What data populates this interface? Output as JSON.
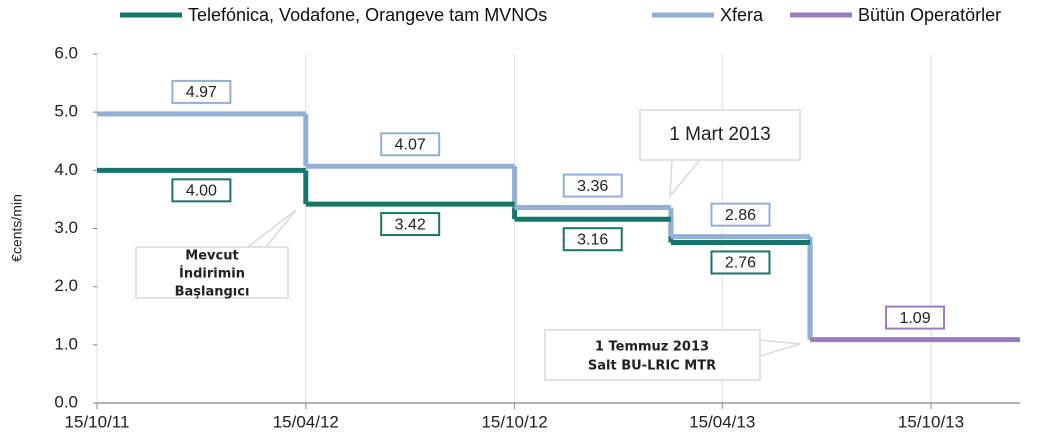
{
  "chart_data": {
    "type": "line",
    "step": "post",
    "y_label": "€cents/min",
    "x": [
      "2011-10-15",
      "2012-04-15",
      "2012-10-15",
      "2013-03-01",
      "2013-07-01",
      "2014-01-01"
    ],
    "series": [
      {
        "name": "Telefónica, Vodafone, Orangeve tam MVNOs",
        "color": "#17766b",
        "values": [
          4.0,
          3.42,
          3.16,
          2.76,
          null,
          null
        ],
        "value_labels": [
          "4.00",
          "3.42",
          "3.16",
          "2.76",
          null,
          null
        ]
      },
      {
        "name": "Xfera",
        "color": "#93afd8",
        "values": [
          4.97,
          4.07,
          3.36,
          2.86,
          null,
          null
        ],
        "value_labels": [
          "4.97",
          "4.07",
          "3.36",
          "2.86",
          null,
          null
        ]
      },
      {
        "name": "Bütün Operatörler",
        "color": "#9c7cc0",
        "values": [
          null,
          null,
          null,
          null,
          1.09,
          null
        ],
        "value_labels": [
          null,
          null,
          null,
          null,
          "1.09",
          null
        ]
      }
    ],
    "xlim": [
      "2011-10-15",
      "2014-01-01"
    ],
    "xticks": [
      {
        "value": "2011-10-15",
        "label": "15/10/11"
      },
      {
        "value": "2012-04-15",
        "label": "15/04/12"
      },
      {
        "value": "2012-10-15",
        "label": "15/10/12"
      },
      {
        "value": "2013-04-15",
        "label": "15/04/13"
      },
      {
        "value": "2013-10-15",
        "label": "15/10/13"
      }
    ],
    "ylim": [
      0,
      6
    ],
    "yticks": [
      {
        "value": 0,
        "label": "0.0"
      },
      {
        "value": 1,
        "label": "1.0"
      },
      {
        "value": 2,
        "label": "2.0"
      },
      {
        "value": 3,
        "label": "3.0"
      },
      {
        "value": 4,
        "label": "4.0"
      },
      {
        "value": 5,
        "label": "5.0"
      },
      {
        "value": 6,
        "label": "6.0"
      }
    ],
    "grid": "x",
    "legend": "top",
    "annotations": [
      {
        "lines": [
          "Mevcut",
          "İndirimin",
          "Başlangıcı"
        ]
      },
      {
        "lines": [
          "1 Mart 2013"
        ]
      },
      {
        "lines": [
          "1 Temmuz 2013",
          "Salt BU-LRIC MTR"
        ]
      }
    ]
  }
}
